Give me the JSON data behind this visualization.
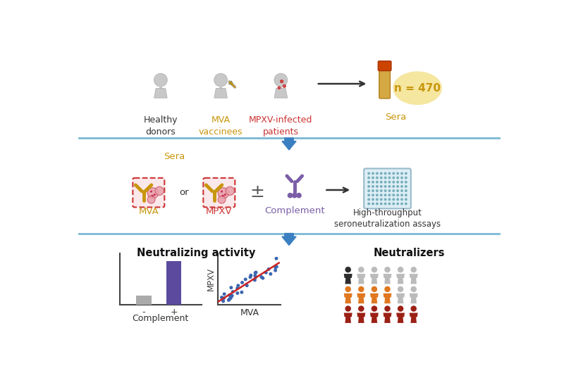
{
  "bg_color": "#ffffff",
  "n_label": "n = 470",
  "section2_label": "Sera",
  "mva_label": "MVA",
  "or_label": "or",
  "mpxv_label": "MPXV",
  "plus_label": "±",
  "complement_label": "Complement",
  "assay_label": "High-throughput\nseroneutralization assays",
  "section3_neutralizing": "Neutralizing activity",
  "section3_neutralizers": "Neutralizers",
  "complement_xlabel": "Complement",
  "complement_minus": "-",
  "complement_plus": "+",
  "scatter_xlabel": "MVA",
  "scatter_ylabel": "MPXV",
  "bar_colors": [
    "#aaaaaa",
    "#5b4a9e"
  ],
  "bar_values": [
    0.18,
    0.85
  ],
  "scatter_color": "#3a65b0",
  "scatter_line_color": "#cc2222",
  "line1_color": "#7ab8d4",
  "arrow_color": "#3a7fc1",
  "mva_label_color": "#c8960c",
  "mpxv_label_color": "#cc3333",
  "complement_label_color": "#7b5ea7",
  "sera_label_color": "#c8960c",
  "sera_n_color": "#c8960c",
  "healthy_color": "#aaaaaa",
  "neutralizers_row1_colors": [
    "#2d2d2d",
    "#bbbbbb",
    "#bbbbbb",
    "#bbbbbb",
    "#bbbbbb",
    "#bbbbbb"
  ],
  "neutralizers_row2_colors": [
    "#e07820",
    "#e07820",
    "#e07820",
    "#e07820",
    "#bbbbbb",
    "#bbbbbb"
  ],
  "neutralizers_row3_colors": [
    "#9b2015",
    "#9b2015",
    "#9b2015",
    "#9b2015",
    "#9b2015",
    "#9b2015"
  ]
}
